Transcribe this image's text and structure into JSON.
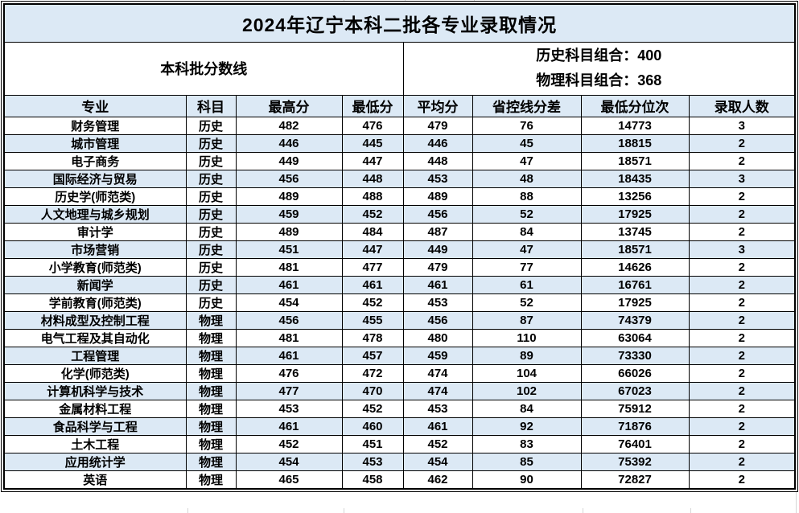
{
  "title": "2024年辽宁本科二批各专业录取情况",
  "score_line": {
    "label": "本科批分数线",
    "history_line": "历史科目组合：400",
    "physics_line": "物理科目组合：368"
  },
  "table": {
    "headers": [
      "专业",
      "科目",
      "最高分",
      "最低分",
      "平均分",
      "省控线分差",
      "最低分位次",
      "录取人数"
    ],
    "rows": [
      [
        "财务管理",
        "历史",
        482,
        476,
        479,
        76,
        14773,
        3
      ],
      [
        "城市管理",
        "历史",
        446,
        445,
        446,
        45,
        18815,
        2
      ],
      [
        "电子商务",
        "历史",
        449,
        447,
        448,
        47,
        18571,
        2
      ],
      [
        "国际经济与贸易",
        "历史",
        456,
        448,
        453,
        48,
        18435,
        3
      ],
      [
        "历史学(师范类)",
        "历史",
        489,
        488,
        489,
        88,
        13256,
        2
      ],
      [
        "人文地理与城乡规划",
        "历史",
        459,
        452,
        456,
        52,
        17925,
        2
      ],
      [
        "审计学",
        "历史",
        489,
        484,
        487,
        84,
        13745,
        2
      ],
      [
        "市场营销",
        "历史",
        451,
        447,
        449,
        47,
        18571,
        3
      ],
      [
        "小学教育(师范类)",
        "历史",
        481,
        477,
        479,
        77,
        14626,
        2
      ],
      [
        "新闻学",
        "历史",
        461,
        461,
        461,
        61,
        16761,
        2
      ],
      [
        "学前教育(师范类)",
        "历史",
        454,
        452,
        453,
        52,
        17925,
        2
      ],
      [
        "材料成型及控制工程",
        "物理",
        456,
        455,
        456,
        87,
        74379,
        2
      ],
      [
        "电气工程及其自动化",
        "物理",
        481,
        478,
        480,
        110,
        63064,
        2
      ],
      [
        "工程管理",
        "物理",
        461,
        457,
        459,
        89,
        73330,
        2
      ],
      [
        "化学(师范类)",
        "物理",
        476,
        472,
        474,
        104,
        66026,
        2
      ],
      [
        "计算机科学与技术",
        "物理",
        477,
        470,
        474,
        102,
        67023,
        2
      ],
      [
        "金属材料工程",
        "物理",
        453,
        452,
        453,
        84,
        75912,
        2
      ],
      [
        "食品科学与工程",
        "物理",
        461,
        460,
        461,
        92,
        71876,
        2
      ],
      [
        "土木工程",
        "物理",
        452,
        451,
        452,
        83,
        76401,
        2
      ],
      [
        "应用统计学",
        "物理",
        454,
        453,
        454,
        85,
        75392,
        2
      ],
      [
        "英语",
        "物理",
        465,
        458,
        462,
        90,
        72827,
        2
      ]
    ]
  },
  "colors": {
    "band_fill": "#dce9f5",
    "border": "#000000",
    "gridline": "#d6d6d6",
    "text": "#000000"
  }
}
